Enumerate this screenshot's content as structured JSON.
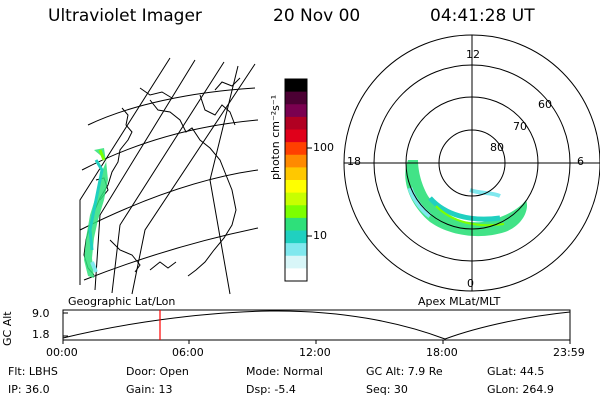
{
  "header": {
    "instrument": "Ultraviolet Imager",
    "date": "20 Nov 00",
    "time": "04:41:28 UT"
  },
  "colorbar": {
    "unit_label": "photon cm⁻²s⁻¹",
    "ticks": [
      "100",
      "10"
    ],
    "colors": [
      "#000000",
      "#4b0033",
      "#7a0050",
      "#b10022",
      "#e0001a",
      "#ff4000",
      "#ff8a00",
      "#ffc800",
      "#ffff00",
      "#c8ff00",
      "#7cff00",
      "#2ee07a",
      "#20d0c0",
      "#80e8ee",
      "#d8f6f8",
      "#ffffff"
    ]
  },
  "polar_plot": {
    "mlt_labels": [
      "12",
      "18",
      "6",
      "0"
    ],
    "lat_labels": [
      "60",
      "70",
      "80"
    ]
  },
  "map_panel": {
    "label": "Geographic Lat/Lon"
  },
  "polar_panel_label": "Apex MLat/MLT",
  "altitude_plot": {
    "ylabel": "GC Alt",
    "ymax_label": "9.0",
    "ymin_label": "1.8",
    "x_ticks": [
      "00:00",
      "06:00",
      "12:00",
      "18:00",
      "23:59"
    ],
    "marker_color": "#ff0000"
  },
  "footer": {
    "filter": "Flt: LBHS",
    "door": "Door: Open",
    "mode": "Mode: Normal",
    "gc_alt": "GC Alt: 7.9 Re",
    "glat": "GLat:  44.5",
    "ip": "IP: 36.0",
    "gain": "Gain: 13",
    "dsp": "Dsp:   -5.4",
    "seq": "Seq: 30",
    "glon": "GLon: 264.9"
  }
}
